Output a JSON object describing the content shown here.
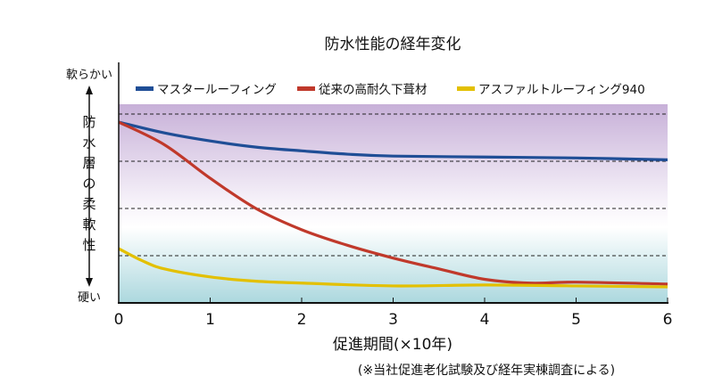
{
  "chart_data": {
    "type": "line",
    "title": "防水性能の経年変化",
    "xlabel": "促進期間(×10年)",
    "note": "(※当社促進老化試験及び経年実棟調査による)",
    "ylabel": "防水層の柔軟性",
    "y_top_label": "軟らかい",
    "y_bottom_label": "硬い",
    "xlim": [
      0,
      6
    ],
    "ylim": [
      0,
      4.2
    ],
    "x_ticks": [
      "0",
      "1",
      "2",
      "3",
      "4",
      "5",
      "6"
    ],
    "grid_levels": [
      1,
      2,
      3,
      4
    ],
    "legend_placement": "top",
    "series": [
      {
        "name": "マスタールーフィング",
        "color": "#1f4e96",
        "x": [
          0,
          0.5,
          1,
          1.5,
          2,
          2.5,
          3,
          4,
          5,
          6
        ],
        "y": [
          3.83,
          3.6,
          3.43,
          3.3,
          3.22,
          3.15,
          3.11,
          3.09,
          3.07,
          3.03
        ]
      },
      {
        "name": "従来の高耐久下葺材",
        "color": "#c0392b",
        "x": [
          0,
          0.5,
          1,
          1.5,
          2,
          2.5,
          3,
          3.5,
          4,
          4.5,
          5,
          6
        ],
        "y": [
          3.83,
          3.35,
          2.64,
          2.0,
          1.55,
          1.22,
          0.95,
          0.72,
          0.5,
          0.42,
          0.44,
          0.4
        ]
      },
      {
        "name": "アスファルトルーフィング940",
        "color": "#e3c000",
        "x": [
          0,
          0.25,
          0.5,
          1,
          1.5,
          2,
          3,
          4,
          5,
          6
        ],
        "y": [
          1.15,
          0.9,
          0.72,
          0.55,
          0.46,
          0.42,
          0.36,
          0.38,
          0.36,
          0.34
        ]
      }
    ]
  }
}
